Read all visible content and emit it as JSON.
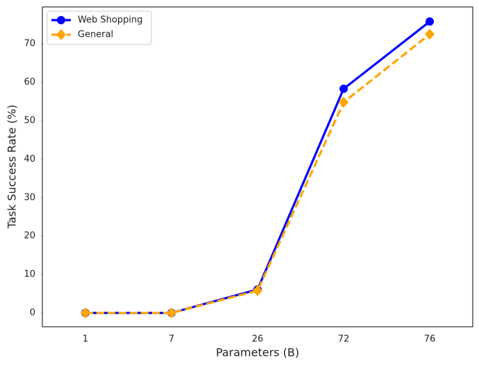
{
  "chart_data": {
    "type": "line",
    "x_label": "Parameters (B)",
    "y_label": "Task Success Rate (%)",
    "categories": [
      "1",
      "7",
      "26",
      "72",
      "76"
    ],
    "series": [
      {
        "name": "Web Shopping",
        "color": "#0000ff",
        "marker": "circle",
        "linestyle": "solid",
        "values": [
          0,
          0,
          6.1,
          58.3,
          75.8
        ]
      },
      {
        "name": "General",
        "color": "#ffa500",
        "marker": "diamond",
        "linestyle": "dashed",
        "values": [
          0,
          0,
          5.8,
          54.8,
          72.5
        ]
      }
    ],
    "ylim": [
      -3.6,
      79.6
    ],
    "yticks": [
      0,
      10,
      20,
      30,
      40,
      50,
      60,
      70
    ],
    "legend": "upper left",
    "grid": false
  }
}
